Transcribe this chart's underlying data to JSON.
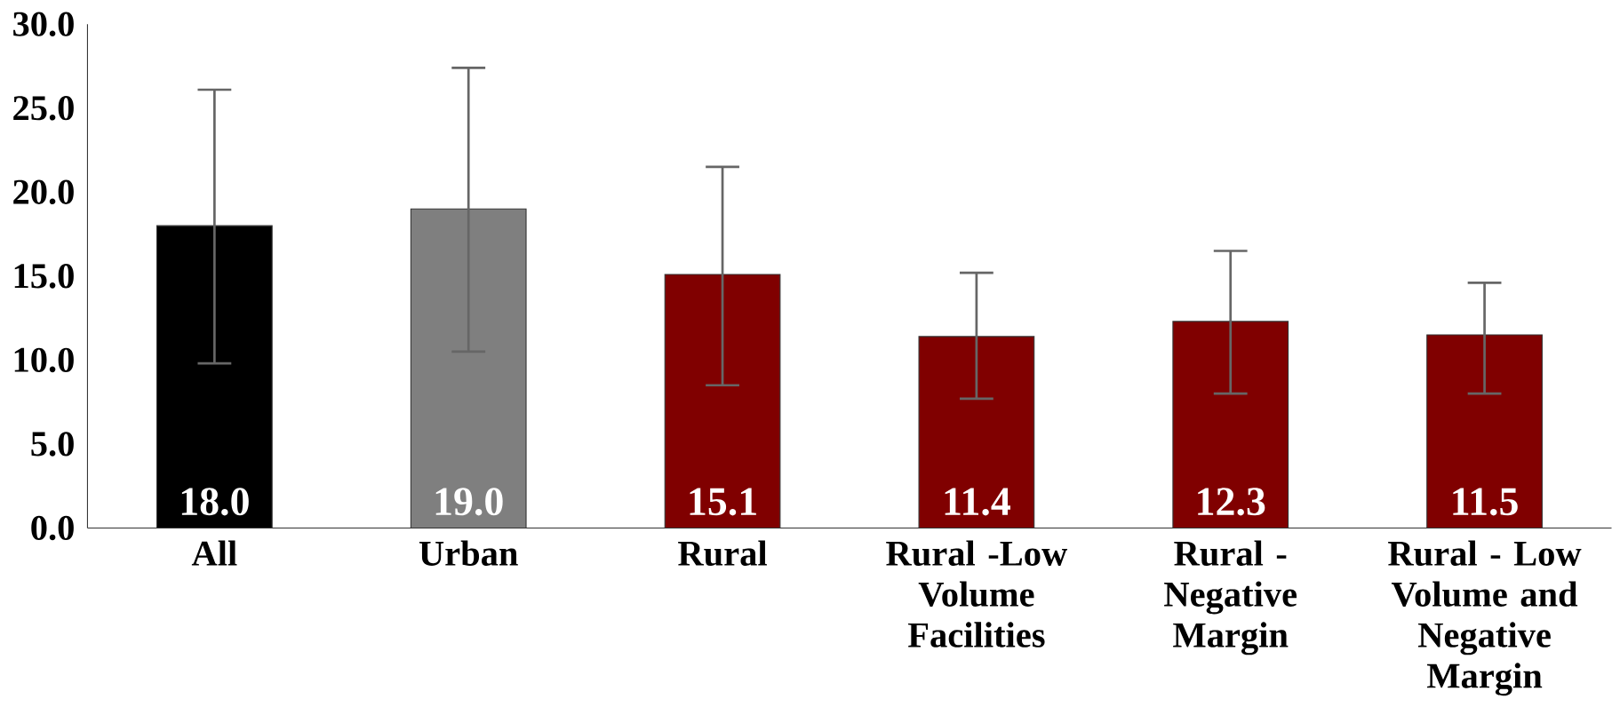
{
  "chart_data": {
    "type": "bar",
    "categories": [
      "All",
      "Urban",
      "Rural",
      "Rural -Low Volume Facilities",
      "Rural - Negative Margin",
      "Rural - Low Volume and Negative Margin"
    ],
    "values": [
      18.0,
      19.0,
      15.1,
      11.4,
      12.3,
      11.5
    ],
    "value_labels": [
      "18.0",
      "19.0",
      "15.1",
      "11.4",
      "12.3",
      "11.5"
    ],
    "colors": [
      "#000000",
      "#7f7f7f",
      "#800000",
      "#800000",
      "#800000",
      "#800000"
    ],
    "errors": [
      [
        9.8,
        26.1
      ],
      [
        10.5,
        27.4
      ],
      [
        8.5,
        21.5
      ],
      [
        7.7,
        15.2
      ],
      [
        8.0,
        16.5
      ],
      [
        8.0,
        14.6
      ]
    ],
    "ylim": [
      0,
      30
    ],
    "yticks": [
      {
        "value": 0,
        "label": "0.0"
      },
      {
        "value": 5,
        "label": "5.0"
      },
      {
        "value": 10,
        "label": "10.0"
      },
      {
        "value": 15,
        "label": "15.0"
      },
      {
        "value": 20,
        "label": "20.0"
      },
      {
        "value": 25,
        "label": "25.0"
      },
      {
        "value": 30,
        "label": "30.0"
      }
    ],
    "grid": false
  }
}
